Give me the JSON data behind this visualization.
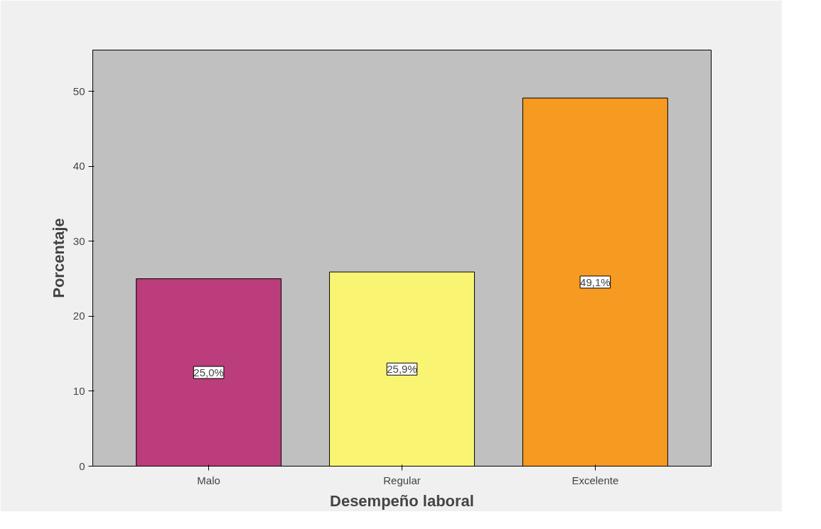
{
  "chart_data": {
    "type": "bar",
    "xlabel": "Desempeño laboral",
    "ylabel": "Porcentaje",
    "categories": [
      "Malo",
      "Regular",
      "Excelente"
    ],
    "values": [
      25.0,
      25.9,
      49.1
    ],
    "colors": [
      "#bb3d7b",
      "#f9f573",
      "#f79a21"
    ],
    "value_labels": [
      "25,0%",
      "25,9%",
      "49,1%"
    ],
    "ylim": [
      0,
      55.5
    ],
    "yticks": [
      0,
      10,
      20,
      30,
      40,
      50
    ],
    "grid": false
  }
}
